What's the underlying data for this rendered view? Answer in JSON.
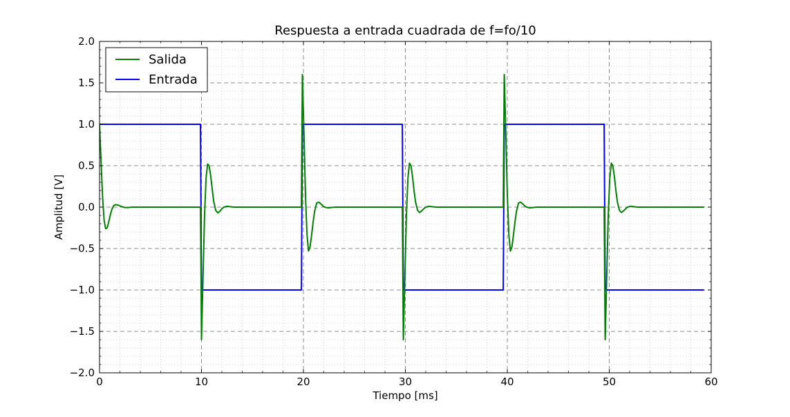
{
  "chart_data": {
    "type": "line",
    "title": "Respuesta a entrada cuadrada de f=fo/10",
    "xlabel": "Tiempo [ms]",
    "ylabel": "Amplitud [V]",
    "xlim": [
      0,
      60
    ],
    "ylim": [
      -2.0,
      2.0
    ],
    "xticks": [
      0,
      10,
      20,
      30,
      40,
      50,
      60
    ],
    "xtick_labels": [
      "0",
      "10",
      "20",
      "30",
      "40",
      "50",
      "60"
    ],
    "yticks": [
      -2.0,
      -1.5,
      -1.0,
      -0.5,
      0.0,
      0.5,
      1.0,
      1.5,
      2.0
    ],
    "ytick_labels": [
      "−2.0",
      "−1.5",
      "−1.0",
      "−0.5",
      "0.0",
      "0.5",
      "1.0",
      "1.5",
      "2.0"
    ],
    "grid": true,
    "legend_position": "top-left",
    "series": [
      {
        "name": "Salida",
        "color": "#008000",
        "x": [
          0,
          0.15,
          0.3,
          0.45,
          0.6,
          0.75,
          0.9,
          1.05,
          1.2,
          1.4,
          1.6,
          1.8,
          2.0,
          2.2,
          2.5,
          2.8,
          3.2,
          3.6,
          4.0,
          5.0,
          6.0,
          7.0,
          8.0,
          9.0,
          9.9,
          9.95,
          10.0,
          10.15,
          10.3,
          10.45,
          10.6,
          10.75,
          10.9,
          11.05,
          11.2,
          11.4,
          11.6,
          11.8,
          12.0,
          12.2,
          12.5,
          12.8,
          13.2,
          13.6,
          14.0,
          15.0,
          17.0,
          19.0,
          19.8,
          19.85,
          19.9,
          20.05,
          20.2,
          20.35,
          20.5,
          20.65,
          20.8,
          20.95,
          21.1,
          21.3,
          21.5,
          21.7,
          21.9,
          22.1,
          22.4,
          22.7,
          23.1,
          23.5,
          23.9,
          25.0,
          27.0,
          29.0,
          29.7,
          29.75,
          29.8,
          29.95,
          30.1,
          30.25,
          30.4,
          30.55,
          30.7,
          30.85,
          31.0,
          31.2,
          31.4,
          31.6,
          31.8,
          32.0,
          32.3,
          32.6,
          33.0,
          33.4,
          33.8,
          35.0,
          37.0,
          39.0,
          39.6,
          39.65,
          39.7,
          39.85,
          40.0,
          40.15,
          40.3,
          40.45,
          40.6,
          40.75,
          40.9,
          41.1,
          41.3,
          41.5,
          41.7,
          41.9,
          42.2,
          42.5,
          42.9,
          43.3,
          43.7,
          45.0,
          47.0,
          49.0,
          49.5,
          49.55,
          49.6,
          49.75,
          49.9,
          50.05,
          50.2,
          50.35,
          50.5,
          50.65,
          50.8,
          51.0,
          51.2,
          51.4,
          51.6,
          51.8,
          52.1,
          52.4,
          52.8,
          53.2,
          53.6,
          55.0,
          57.0,
          59.3
        ],
        "y": [
          1.0,
          0.55,
          0.12,
          -0.16,
          -0.26,
          -0.25,
          -0.18,
          -0.1,
          -0.03,
          0.02,
          0.03,
          0.025,
          0.015,
          0.005,
          -0.005,
          -0.005,
          0.0,
          0.0,
          0.0,
          0.0,
          0.0,
          0.0,
          0.0,
          0.0,
          0.0,
          -0.7,
          -1.6,
          -0.85,
          -0.1,
          0.35,
          0.52,
          0.5,
          0.38,
          0.22,
          0.07,
          -0.04,
          -0.07,
          -0.05,
          -0.02,
          0.0,
          0.01,
          0.005,
          0.0,
          0.0,
          0.0,
          0.0,
          0.0,
          0.0,
          0.0,
          0.8,
          1.6,
          0.9,
          0.15,
          -0.33,
          -0.53,
          -0.48,
          -0.34,
          -0.18,
          -0.05,
          0.05,
          0.06,
          0.04,
          0.015,
          0.0,
          -0.01,
          -0.005,
          0.0,
          0.0,
          0.0,
          0.0,
          0.0,
          0.0,
          0.0,
          -0.8,
          -1.6,
          -0.85,
          -0.1,
          0.35,
          0.53,
          0.5,
          0.37,
          0.2,
          0.06,
          -0.04,
          -0.065,
          -0.045,
          -0.02,
          0.0,
          0.01,
          0.005,
          0.0,
          0.0,
          0.0,
          0.0,
          0.0,
          0.0,
          0.0,
          0.8,
          1.6,
          0.9,
          0.15,
          -0.33,
          -0.53,
          -0.48,
          -0.34,
          -0.18,
          -0.05,
          0.05,
          0.06,
          0.04,
          0.015,
          0.0,
          -0.01,
          -0.005,
          0.0,
          0.0,
          0.0,
          0.0,
          0.0,
          0.0,
          0.0,
          -0.8,
          -1.6,
          -0.85,
          -0.1,
          0.35,
          0.53,
          0.5,
          0.37,
          0.2,
          0.06,
          -0.04,
          -0.065,
          -0.045,
          -0.02,
          0.0,
          0.01,
          0.005,
          0.0,
          0.0,
          0.0,
          0.0,
          0.0,
          0.0
        ]
      },
      {
        "name": "Entrada",
        "color": "#0000ff",
        "x": [
          0,
          9.9,
          10.0,
          19.8,
          19.9,
          29.7,
          29.8,
          39.6,
          39.7,
          49.5,
          49.6,
          59.3
        ],
        "y": [
          1.0,
          1.0,
          -1.0,
          -1.0,
          1.0,
          1.0,
          -1.0,
          -1.0,
          1.0,
          1.0,
          -1.0,
          -1.0
        ]
      }
    ]
  }
}
